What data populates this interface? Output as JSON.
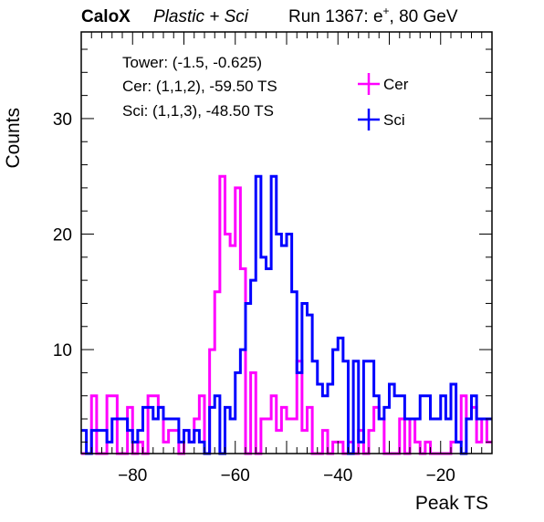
{
  "header": {
    "experiment": "CaloX",
    "config": "Plastic + Sci",
    "run_prefix": "Run 1367: e",
    "run_sup": "+",
    "run_suffix": ", 80 GeV"
  },
  "info_box": {
    "line1": "Tower: (-1.5, -0.625)",
    "line2": "Cer: (1,1,2), -59.50 TS",
    "line3": "Sci: (1,1,3), -48.50 TS"
  },
  "colors": {
    "cer": "#ff00ff",
    "sci": "#0000ff"
  },
  "chart_data": {
    "type": "histogram",
    "xlabel": "Peak TS",
    "ylabel": "Counts",
    "xlim": [
      -90,
      -10
    ],
    "ylim": [
      1,
      37.5
    ],
    "x_ticks": [
      -80,
      -60,
      -40,
      -20
    ],
    "x_tick_labels": [
      "−80",
      "−60",
      "−40",
      "−20"
    ],
    "y_ticks": [
      10,
      20,
      30
    ],
    "y_tick_labels": [
      "10",
      "20",
      "30"
    ],
    "bin_width": 1,
    "bin_low_edges": [
      -90,
      -89,
      -88,
      -87,
      -86,
      -85,
      -84,
      -83,
      -82,
      -81,
      -80,
      -79,
      -78,
      -77,
      -76,
      -75,
      -74,
      -73,
      -72,
      -71,
      -70,
      -69,
      -68,
      -67,
      -66,
      -65,
      -64,
      -63,
      -62,
      -61,
      -60,
      -59,
      -58,
      -57,
      -56,
      -55,
      -54,
      -53,
      -52,
      -51,
      -50,
      -49,
      -48,
      -47,
      -46,
      -45,
      -44,
      -43,
      -42,
      -41,
      -40,
      -39,
      -38,
      -37,
      -36,
      -35,
      -34,
      -33,
      -32,
      -31,
      -30,
      -29,
      -28,
      -27,
      -26,
      -25,
      -24,
      -23,
      -22,
      -21,
      -20,
      -19,
      -18,
      -17,
      -16,
      -15,
      -14,
      -13,
      -12,
      -11
    ],
    "series": [
      {
        "name": "Cer",
        "values": [
          1,
          1,
          6,
          1,
          1,
          6,
          6,
          1,
          1,
          5,
          1,
          2,
          1,
          6,
          6,
          5,
          2,
          3,
          3,
          1,
          3,
          2,
          4,
          6,
          1,
          10,
          15,
          25,
          20,
          19,
          24,
          17,
          1,
          8,
          1,
          4,
          4,
          6,
          3,
          5,
          4,
          4,
          9,
          3,
          5,
          1,
          1,
          3,
          1,
          2,
          2,
          1,
          2,
          1,
          3,
          1,
          3,
          5,
          4,
          1,
          1,
          1,
          4,
          1,
          4,
          2,
          1,
          2,
          1,
          1,
          1,
          1,
          2,
          2,
          6,
          4,
          5,
          2,
          4,
          2
        ]
      },
      {
        "name": "Sci",
        "values": [
          3,
          1,
          3,
          3,
          3,
          2,
          4,
          4,
          4,
          3,
          2,
          3,
          5,
          5,
          4,
          5,
          4,
          4,
          4,
          2,
          3,
          2,
          3,
          2,
          1,
          5,
          6,
          1,
          5,
          4,
          8,
          10,
          14,
          16,
          25,
          18,
          17,
          25,
          20,
          19,
          20,
          15,
          8,
          14,
          13,
          9,
          7,
          6,
          7,
          10,
          11,
          9,
          1,
          9,
          2,
          9,
          9,
          6,
          4,
          5,
          7,
          6,
          6,
          4,
          4,
          4,
          6,
          6,
          4,
          4,
          6,
          4,
          7,
          2,
          1,
          4,
          6,
          4,
          4,
          4
        ]
      }
    ],
    "legend": {
      "position": "top-right",
      "entries": [
        "Cer",
        "Sci"
      ]
    },
    "grid": false
  }
}
